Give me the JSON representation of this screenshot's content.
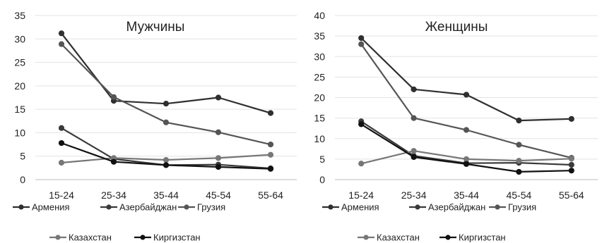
{
  "chart_data": [
    {
      "type": "line",
      "title": "Мужчины",
      "categories": [
        "15-24",
        "25-34",
        "35-44",
        "45-54",
        "55-64"
      ],
      "ylim": [
        0,
        35
      ],
      "yticks": [
        0,
        5,
        10,
        15,
        20,
        25,
        30,
        35
      ],
      "grid": true,
      "legend_position": "bottom",
      "series": [
        {
          "name": "Армения",
          "values": [
            31.2,
            16.8,
            16.2,
            17.5,
            14.2
          ],
          "color": "#2f2f2f"
        },
        {
          "name": "Азербайджан",
          "values": [
            11.0,
            4.4,
            3.1,
            3.2,
            2.4
          ],
          "color": "#3a3a3a"
        },
        {
          "name": "Грузия",
          "values": [
            28.9,
            17.6,
            12.2,
            10.1,
            7.5
          ],
          "color": "#555555"
        },
        {
          "name": "Казахстан",
          "values": [
            3.6,
            4.6,
            4.2,
            4.6,
            5.3
          ],
          "color": "#777777"
        },
        {
          "name": "Киргизстан",
          "values": [
            7.8,
            3.8,
            3.1,
            2.7,
            2.3
          ],
          "color": "#111111"
        }
      ]
    },
    {
      "type": "line",
      "title": "Женщины",
      "categories": [
        "15-24",
        "25-34",
        "35-44",
        "45-54",
        "55-64"
      ],
      "ylim": [
        0,
        40
      ],
      "yticks": [
        0,
        5,
        10,
        15,
        20,
        25,
        30,
        35,
        40
      ],
      "grid": true,
      "legend_position": "bottom",
      "series": [
        {
          "name": "Армения",
          "values": [
            34.5,
            22.0,
            20.7,
            14.4,
            14.8
          ],
          "color": "#2f2f2f"
        },
        {
          "name": "Азербайджан",
          "values": [
            14.2,
            5.8,
            4.0,
            4.1,
            3.6
          ],
          "color": "#3a3a3a"
        },
        {
          "name": "Грузия",
          "values": [
            33.0,
            15.0,
            12.1,
            8.5,
            5.3
          ],
          "color": "#555555"
        },
        {
          "name": "Казахстан",
          "values": [
            3.9,
            7.0,
            5.0,
            4.6,
            5.1
          ],
          "color": "#777777"
        },
        {
          "name": "Киргизстан",
          "values": [
            13.5,
            5.5,
            3.8,
            1.9,
            2.2
          ],
          "color": "#111111"
        }
      ]
    }
  ]
}
